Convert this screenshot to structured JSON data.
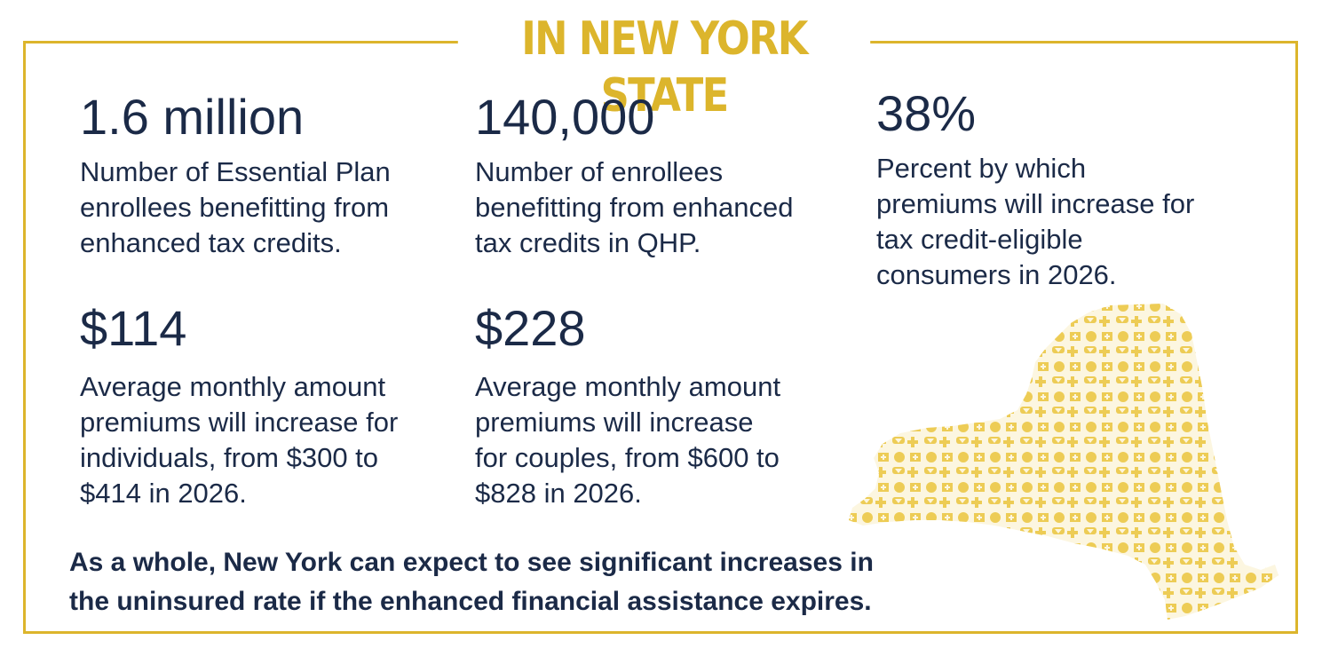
{
  "title": "IN NEW YORK STATE",
  "stats": [
    {
      "value": "1.6 million",
      "lines": [
        "Number of Essential Plan",
        "enrollees benefitting from",
        "enhanced tax credits."
      ]
    },
    {
      "value": "140,000",
      "lines": [
        "Number of enrollees",
        "benefitting from enhanced",
        "tax credits in QHP."
      ]
    },
    {
      "value": "38%",
      "lines": [
        "Percent by which",
        "premiums will increase for",
        "tax credit-eligible",
        "consumers in 2026."
      ]
    },
    {
      "value": "$114",
      "lines": [
        "Average monthly amount",
        "premiums will increase for",
        "individuals, from $300 to",
        "$414 in 2026."
      ]
    },
    {
      "value": "$228",
      "lines": [
        "Average monthly amount",
        "premiums will increase",
        "for couples, from $600 to",
        "$828 in 2026."
      ]
    }
  ],
  "footer": {
    "lines": [
      "As a whole, New York can expect to see significant increases in",
      "the uninsured rate if the enhanced financial assistance expires."
    ]
  },
  "colors": {
    "accent": "#dcb52c",
    "text": "#1b2a47"
  },
  "map_icon": "new-york-state-map-icon"
}
